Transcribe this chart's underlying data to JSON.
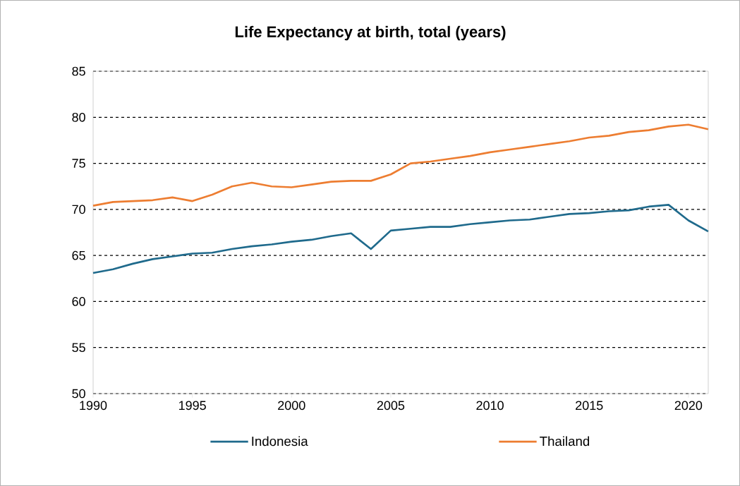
{
  "chart_data": {
    "type": "line",
    "title": "Life Expectancy at birth, total (years)",
    "x": [
      1990,
      1991,
      1992,
      1993,
      1994,
      1995,
      1996,
      1997,
      1998,
      1999,
      2000,
      2001,
      2002,
      2003,
      2004,
      2005,
      2006,
      2007,
      2008,
      2009,
      2010,
      2011,
      2012,
      2013,
      2014,
      2015,
      2016,
      2017,
      2018,
      2019,
      2020,
      2021
    ],
    "series": [
      {
        "name": "Indonesia",
        "color": "#1f6a8c",
        "values": [
          63.1,
          63.5,
          64.1,
          64.6,
          64.9,
          65.2,
          65.3,
          65.7,
          66.0,
          66.2,
          66.5,
          66.7,
          67.1,
          67.4,
          65.7,
          67.7,
          67.9,
          68.1,
          68.1,
          68.4,
          68.6,
          68.8,
          68.9,
          69.2,
          69.5,
          69.6,
          69.8,
          69.9,
          70.3,
          70.5,
          68.8,
          67.6
        ]
      },
      {
        "name": "Thailand",
        "color": "#ed7d31",
        "values": [
          70.4,
          70.8,
          70.9,
          71.0,
          71.3,
          70.9,
          71.6,
          72.5,
          72.9,
          72.5,
          72.4,
          72.7,
          73.0,
          73.1,
          73.1,
          73.8,
          75.0,
          75.2,
          75.5,
          75.8,
          76.2,
          76.5,
          76.8,
          77.1,
          77.4,
          77.8,
          78.0,
          78.4,
          78.6,
          79.0,
          79.2,
          78.7
        ]
      }
    ],
    "xlim": [
      1990,
      2021
    ],
    "xticks": [
      1990,
      1995,
      2000,
      2005,
      2010,
      2015,
      2020
    ],
    "ylim": [
      50,
      85
    ],
    "yticks": [
      50,
      55,
      60,
      65,
      70,
      75,
      80,
      85
    ],
    "grid": "y",
    "legend": "bottom",
    "marker": "none",
    "line_style": "solid"
  }
}
